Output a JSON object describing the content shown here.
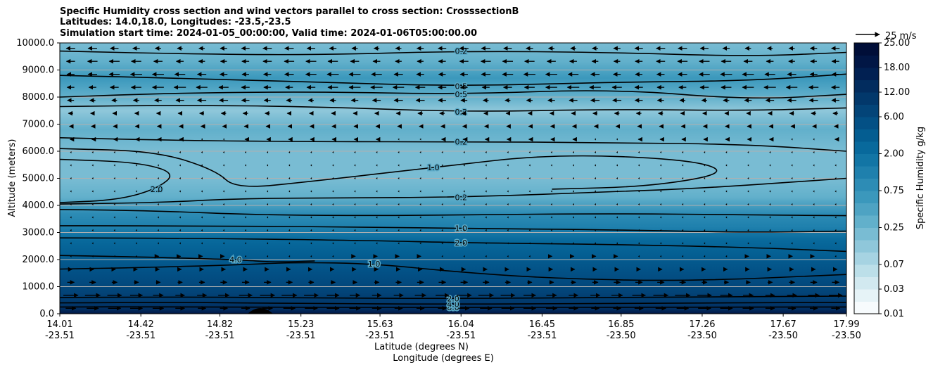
{
  "chart_data": {
    "type": "heatmap",
    "title_lines": [
      "Specific Humidity cross section and wind vectors parallel to cross section: CrosssectionB",
      "Latitudes: 14.0,18.0, Longitudes: -23.5,-23.5",
      "Simulation start time: 2024-01-05_00:00:00, Valid time: 2024-01-06T05:00:00.00"
    ],
    "ylabel": "Altitude (meters)",
    "xlabel_lat": "Latitude (degrees N)",
    "xlabel_lon": "Longitude (degrees E)",
    "ylim": [
      0,
      10000
    ],
    "y_ticks": [
      "0.0",
      "1000.0",
      "2000.0",
      "3000.0",
      "4000.0",
      "5000.0",
      "6000.0",
      "7000.0",
      "8000.0",
      "9000.0",
      "10000.0"
    ],
    "x_ticks_lat": [
      "14.01",
      "14.42",
      "14.82",
      "15.23",
      "15.63",
      "16.04",
      "16.45",
      "16.85",
      "17.26",
      "17.67",
      "17.99"
    ],
    "x_ticks_lon": [
      "-23.51",
      "-23.51",
      "-23.51",
      "-23.51",
      "-23.51",
      "-23.51",
      "-23.51",
      "-23.50",
      "-23.50",
      "-23.50",
      "-23.50"
    ],
    "colorbar": {
      "label": "Specific Humidity g/kg",
      "levels": [
        0.01,
        0.02,
        0.03,
        0.05,
        0.07,
        0.1,
        0.15,
        0.25,
        0.4,
        0.5,
        0.75,
        1.0,
        1.5,
        2.0,
        3.0,
        4.0,
        6.0,
        8.0,
        12.0,
        15.0,
        18.0,
        20.0,
        25.0
      ],
      "tick_labels": [
        "0.01",
        "0.03",
        "0.07",
        "0.25",
        "0.75",
        "2.00",
        "6.00",
        "12.00",
        "18.00",
        "25.00"
      ],
      "colors": [
        "#f7fbfd",
        "#e6f3f7",
        "#d2e9f0",
        "#bcdfe9",
        "#a6d3e2",
        "#8fc7da",
        "#79bcd3",
        "#62b0cb",
        "#4ea3c3",
        "#3b98bc",
        "#2d8cb5",
        "#1f80ad",
        "#1275a5",
        "#08699c",
        "#045d91",
        "#035085",
        "#034478",
        "#02386b",
        "#022c5e",
        "#012052",
        "#011645",
        "#000e38"
      ]
    },
    "profile": [
      {
        "alt": 0,
        "q": 18.0
      },
      {
        "alt": 150,
        "q": 12.0
      },
      {
        "alt": 400,
        "q": 8.0
      },
      {
        "alt": 800,
        "q": 6.0
      },
      {
        "alt": 1500,
        "q": 4.0
      },
      {
        "alt": 2100,
        "q": 3.0
      },
      {
        "alt": 2700,
        "q": 2.0
      },
      {
        "alt": 3200,
        "q": 1.2
      },
      {
        "alt": 3700,
        "q": 0.8
      },
      {
        "alt": 4300,
        "q": 0.3
      },
      {
        "alt": 5000,
        "q": 0.15
      },
      {
        "alt": 6000,
        "q": 0.2
      },
      {
        "alt": 6800,
        "q": 0.25
      },
      {
        "alt": 7500,
        "q": 0.1
      },
      {
        "alt": 8000,
        "q": 0.3
      },
      {
        "alt": 8700,
        "q": 0.5
      },
      {
        "alt": 9300,
        "q": 0.3
      },
      {
        "alt": 10000,
        "q": 0.2
      }
    ],
    "contours": [
      {
        "level": "8.0",
        "points": [
          [
            14.01,
            250
          ],
          [
            14.5,
            260
          ],
          [
            15.0,
            240
          ],
          [
            16.0,
            230
          ],
          [
            17.0,
            240
          ],
          [
            17.99,
            250
          ]
        ]
      },
      {
        "level": "4.0",
        "points": [
          [
            14.01,
            400
          ],
          [
            14.6,
            420
          ],
          [
            15.2,
            380
          ],
          [
            16.0,
            350
          ],
          [
            16.8,
            380
          ],
          [
            17.99,
            420
          ]
        ]
      },
      {
        "level": "2.0",
        "points": [
          [
            14.01,
            600
          ],
          [
            14.7,
            620
          ],
          [
            15.3,
            580
          ],
          [
            16.0,
            560
          ],
          [
            16.8,
            600
          ],
          [
            17.99,
            650
          ]
        ]
      },
      {
        "level": "1.0",
        "points": [
          [
            14.01,
            1650
          ],
          [
            14.4,
            1700
          ],
          [
            14.9,
            1800
          ],
          [
            15.2,
            1900
          ],
          [
            15.6,
            1850
          ],
          [
            16.0,
            1550
          ],
          [
            16.5,
            1300
          ],
          [
            17.2,
            1200
          ],
          [
            17.99,
            1450
          ]
        ]
      },
      {
        "level": "4.0",
        "points": [
          [
            14.01,
            2150
          ],
          [
            14.4,
            2100
          ],
          [
            14.9,
            2000
          ],
          [
            15.1,
            1900
          ],
          [
            15.3,
            1950
          ]
        ]
      },
      {
        "level": "2.0",
        "points": [
          [
            14.01,
            2800
          ],
          [
            14.8,
            2780
          ],
          [
            15.6,
            2700
          ],
          [
            16.04,
            2620
          ],
          [
            16.8,
            2560
          ],
          [
            17.5,
            2450
          ],
          [
            17.99,
            2300
          ]
        ]
      },
      {
        "level": "1.0",
        "points": [
          [
            14.01,
            3250
          ],
          [
            14.8,
            3240
          ],
          [
            15.6,
            3200
          ],
          [
            16.04,
            3150
          ],
          [
            16.8,
            3100
          ],
          [
            17.5,
            3000
          ],
          [
            17.99,
            3050
          ]
        ]
      },
      {
        "level": "",
        "points": [
          [
            14.01,
            3850
          ],
          [
            14.5,
            3800
          ],
          [
            15.0,
            3650
          ],
          [
            15.6,
            3620
          ],
          [
            16.04,
            3650
          ],
          [
            16.8,
            3700
          ],
          [
            17.5,
            3650
          ],
          [
            17.99,
            3620
          ]
        ]
      },
      {
        "level": "0.2",
        "points": [
          [
            14.01,
            4050
          ],
          [
            14.5,
            4100
          ],
          [
            14.9,
            4250
          ],
          [
            15.4,
            4280
          ],
          [
            16.04,
            4300
          ],
          [
            16.8,
            4500
          ],
          [
            17.3,
            4650
          ],
          [
            17.99,
            5000
          ]
        ]
      },
      {
        "level": "2.0",
        "points": [
          [
            14.01,
            5700
          ],
          [
            14.4,
            5600
          ],
          [
            14.6,
            5200
          ],
          [
            14.5,
            4600
          ],
          [
            14.3,
            4200
          ],
          [
            14.01,
            4100
          ]
        ]
      },
      {
        "level": "1.0",
        "points": [
          [
            14.01,
            6100
          ],
          [
            14.5,
            6000
          ],
          [
            14.8,
            5300
          ],
          [
            14.9,
            4600
          ],
          [
            15.3,
            4900
          ],
          [
            15.9,
            5400
          ],
          [
            16.5,
            5900
          ],
          [
            17.2,
            5700
          ],
          [
            17.4,
            5200
          ],
          [
            17.0,
            4700
          ],
          [
            16.5,
            4600
          ]
        ]
      },
      {
        "level": "0.2",
        "points": [
          [
            14.01,
            6500
          ],
          [
            14.6,
            6400
          ],
          [
            15.3,
            6350
          ],
          [
            16.04,
            6350
          ],
          [
            16.8,
            6320
          ],
          [
            17.5,
            6250
          ],
          [
            17.99,
            6000
          ]
        ]
      },
      {
        "level": "0.2",
        "points": [
          [
            14.01,
            7650
          ],
          [
            14.6,
            7700
          ],
          [
            15.3,
            7650
          ],
          [
            16.04,
            7450
          ],
          [
            16.8,
            7550
          ],
          [
            17.5,
            7500
          ],
          [
            17.99,
            7600
          ]
        ]
      },
      {
        "level": "0.5",
        "points": [
          [
            14.01,
            8000
          ],
          [
            14.6,
            8150
          ],
          [
            15.3,
            8200
          ],
          [
            16.04,
            8100
          ],
          [
            16.8,
            8300
          ],
          [
            17.5,
            7900
          ],
          [
            17.99,
            8100
          ]
        ]
      },
      {
        "level": "0.5",
        "points": [
          [
            14.01,
            8800
          ],
          [
            14.6,
            8700
          ],
          [
            15.3,
            8550
          ],
          [
            16.04,
            8400
          ],
          [
            16.8,
            8550
          ],
          [
            17.5,
            8600
          ],
          [
            17.99,
            8850
          ]
        ]
      },
      {
        "level": "0.2",
        "points": [
          [
            14.01,
            9700
          ],
          [
            14.6,
            9600
          ],
          [
            15.3,
            9550
          ],
          [
            16.04,
            9700
          ],
          [
            16.8,
            9650
          ],
          [
            17.5,
            9500
          ],
          [
            17.99,
            9650
          ]
        ]
      }
    ],
    "quiver_key": {
      "label": "25 m/s",
      "speed": 25
    },
    "wind_profile": [
      {
        "alt": 200,
        "u": 9
      },
      {
        "alt": 600,
        "u": 12
      },
      {
        "alt": 1000,
        "u": 6
      },
      {
        "alt": 1500,
        "u": 3
      },
      {
        "alt": 2000,
        "u": 1
      },
      {
        "alt": 3000,
        "u": 0.5
      },
      {
        "alt": 4000,
        "u": -0.5
      },
      {
        "alt": 5000,
        "u": -0.5
      },
      {
        "alt": 6000,
        "u": -0.5
      },
      {
        "alt": 7000,
        "u": -2
      },
      {
        "alt": 7500,
        "u": -4
      },
      {
        "alt": 8000,
        "u": -7
      },
      {
        "alt": 8500,
        "u": -9
      },
      {
        "alt": 9000,
        "u": -8
      },
      {
        "alt": 9500,
        "u": -7
      },
      {
        "alt": 10000,
        "u": -6
      }
    ]
  }
}
